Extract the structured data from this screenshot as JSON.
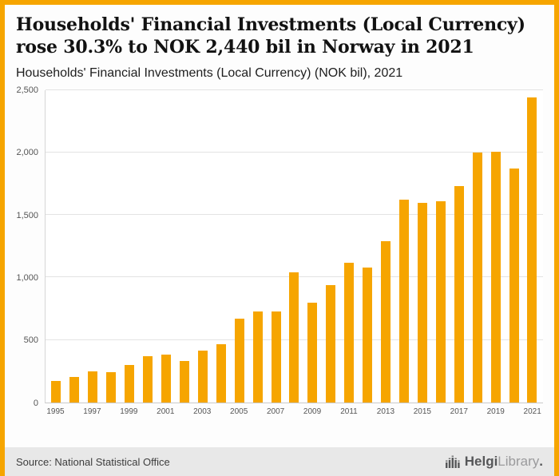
{
  "colors": {
    "accent": "#F6A500",
    "grid": "#E3E3E3",
    "footer_bg": "#E8E8E8"
  },
  "header": {
    "title": "Households' Financial Investments (Local Currency) rose 30.3% to NOK 2,440 bil in Norway in 2021",
    "subtitle": "Households' Financial Investments (Local Currency) (NOK bil), 2021"
  },
  "chart_data": {
    "type": "bar",
    "title": "Households' Financial Investments (Local Currency) (NOK bil), 2021",
    "categories": [
      1995,
      1996,
      1997,
      1998,
      1999,
      2000,
      2001,
      2002,
      2003,
      2004,
      2005,
      2006,
      2007,
      2008,
      2009,
      2010,
      2011,
      2012,
      2013,
      2014,
      2015,
      2016,
      2017,
      2018,
      2019,
      2020,
      2021
    ],
    "values": [
      175,
      205,
      250,
      245,
      300,
      370,
      380,
      330,
      413,
      465,
      672,
      730,
      730,
      1040,
      800,
      937,
      1118,
      1079,
      1292,
      1622,
      1600,
      1609,
      1731,
      2003,
      2009,
      1873,
      2440
    ],
    "bar_color": "#F6A500",
    "xlabel": "",
    "ylabel": "",
    "ylim": [
      0,
      2500
    ],
    "yticks": [
      0,
      500,
      1000,
      1500,
      2000,
      2500
    ],
    "ytick_labels": [
      "0",
      "500",
      "1,000",
      "1,500",
      "2,000",
      "2,500"
    ],
    "xtick_labels_shown": [
      "1995",
      "1997",
      "1999",
      "2001",
      "2003",
      "2005",
      "2007",
      "2009",
      "2011",
      "2013",
      "2015",
      "2017",
      "2019",
      "2021"
    ],
    "grid": true,
    "legend": "none"
  },
  "footer": {
    "source": "Source: National Statistical Office",
    "logo": {
      "part_bold": "Helgi",
      "part_light": "Library",
      "suffix": "."
    }
  }
}
